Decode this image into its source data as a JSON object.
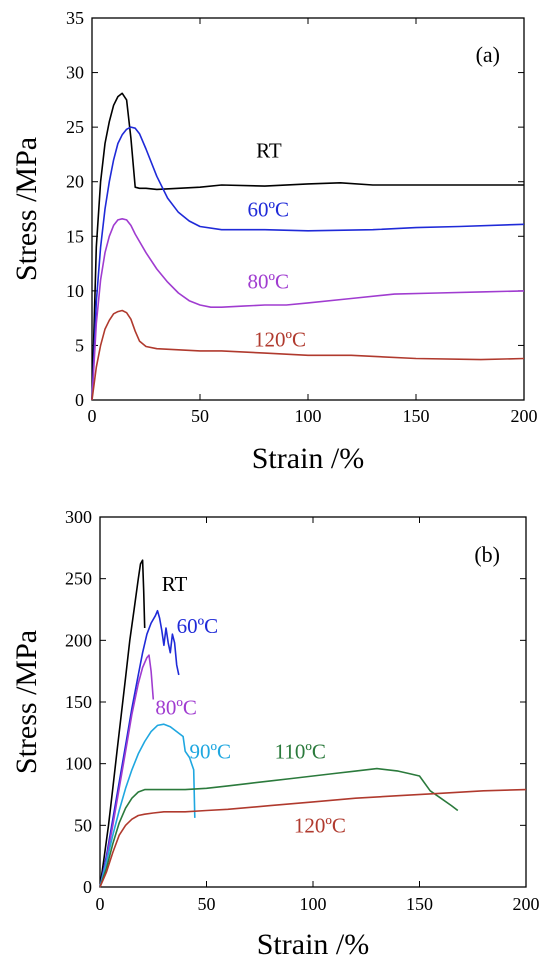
{
  "chart_data": [
    {
      "panel": "(a)",
      "type": "line",
      "xlabel": "Strain /%",
      "ylabel": "Stress /MPa",
      "xlim": [
        0,
        200
      ],
      "ylim": [
        0,
        35
      ],
      "xticks": [
        0,
        50,
        100,
        150,
        200
      ],
      "yticks": [
        0,
        5,
        10,
        15,
        20,
        25,
        30,
        35
      ],
      "grid": false,
      "series": [
        {
          "name": "RT",
          "color": "#000000",
          "x": [
            0,
            2,
            4,
            6,
            8,
            10,
            12,
            14,
            16,
            18,
            20,
            22,
            25,
            30,
            40,
            50,
            60,
            80,
            100,
            115,
            130,
            150,
            170,
            200
          ],
          "y": [
            0,
            14,
            20,
            23.5,
            25.5,
            27,
            27.8,
            28.1,
            27.5,
            24,
            19.5,
            19.4,
            19.4,
            19.3,
            19.4,
            19.5,
            19.7,
            19.6,
            19.8,
            19.9,
            19.7,
            19.7,
            19.7,
            19.7
          ]
        },
        {
          "name": "60ºC",
          "color": "#1f2ad8",
          "x": [
            0,
            2,
            4,
            6,
            8,
            10,
            12,
            14,
            16,
            18,
            20,
            22,
            25,
            30,
            35,
            40,
            45,
            50,
            60,
            80,
            100,
            130,
            150,
            170,
            200
          ],
          "y": [
            0,
            9,
            14,
            17.5,
            20,
            22,
            23.5,
            24.3,
            24.8,
            25,
            24.9,
            24.4,
            23,
            20.5,
            18.5,
            17.2,
            16.4,
            15.9,
            15.6,
            15.6,
            15.5,
            15.6,
            15.8,
            15.9,
            16.1
          ]
        },
        {
          "name": "80ºC",
          "color": "#a03cd0",
          "x": [
            0,
            2,
            4,
            6,
            8,
            10,
            12,
            14,
            16,
            18,
            20,
            25,
            30,
            35,
            40,
            45,
            50,
            55,
            60,
            70,
            80,
            90,
            100,
            120,
            140,
            160,
            180,
            200
          ],
          "y": [
            0,
            7,
            11,
            13.5,
            15,
            16,
            16.5,
            16.6,
            16.5,
            16,
            15.2,
            13.5,
            12,
            10.8,
            9.8,
            9.1,
            8.7,
            8.5,
            8.5,
            8.6,
            8.7,
            8.7,
            8.9,
            9.3,
            9.7,
            9.8,
            9.9,
            10
          ]
        },
        {
          "name": "120ºC",
          "color": "#b03a2e",
          "x": [
            0,
            2,
            4,
            6,
            8,
            10,
            12,
            14,
            16,
            18,
            20,
            22,
            25,
            30,
            40,
            50,
            60,
            80,
            100,
            120,
            150,
            180,
            200
          ],
          "y": [
            0,
            3,
            5,
            6.5,
            7.3,
            7.9,
            8.1,
            8.2,
            8,
            7.4,
            6.3,
            5.4,
            4.9,
            4.7,
            4.6,
            4.5,
            4.5,
            4.3,
            4.1,
            4.1,
            3.8,
            3.7,
            3.8
          ]
        }
      ],
      "annotations": [
        {
          "text": "RT",
          "x": 76,
          "y": 22.2,
          "color": "#000000"
        },
        {
          "text": "60ºC",
          "x": 72,
          "y": 16.8,
          "color": "#1f2ad8"
        },
        {
          "text": "80ºC",
          "x": 72,
          "y": 10.2,
          "color": "#a03cd0"
        },
        {
          "text": "120ºC",
          "x": 75,
          "y": 4.9,
          "color": "#b03a2e"
        }
      ]
    },
    {
      "panel": "(b)",
      "type": "line",
      "xlabel": "Strain /%",
      "ylabel": "Stress /MPa",
      "xlim": [
        0,
        200
      ],
      "ylim": [
        0,
        300
      ],
      "xticks": [
        0,
        50,
        100,
        150,
        200
      ],
      "yticks": [
        0,
        50,
        100,
        150,
        200,
        250,
        300
      ],
      "grid": false,
      "series": [
        {
          "name": "RT",
          "color": "#000000",
          "x": [
            0,
            2,
            4,
            6,
            8,
            10,
            12,
            14,
            16,
            18,
            19,
            20,
            20.5,
            21
          ],
          "y": [
            0,
            25,
            50,
            80,
            110,
            140,
            170,
            200,
            225,
            250,
            262,
            265,
            240,
            210
          ]
        },
        {
          "name": "60ºC",
          "color": "#1f2ad8",
          "x": [
            0,
            3,
            6,
            9,
            12,
            15,
            18,
            20,
            22,
            24,
            26,
            27,
            28,
            29,
            30,
            31,
            32,
            33,
            34,
            35,
            36,
            37
          ],
          "y": [
            0,
            25,
            55,
            85,
            115,
            145,
            172,
            190,
            205,
            214,
            220,
            224,
            218,
            208,
            196,
            210,
            198,
            190,
            205,
            198,
            180,
            172
          ]
        },
        {
          "name": "80ºC",
          "color": "#a03cd0",
          "x": [
            0,
            3,
            6,
            9,
            12,
            15,
            18,
            20,
            22,
            23,
            24,
            25
          ],
          "y": [
            0,
            22,
            50,
            80,
            110,
            140,
            165,
            178,
            186,
            188,
            175,
            152
          ]
        },
        {
          "name": "90ºC",
          "color": "#1fa7e0",
          "x": [
            0,
            3,
            6,
            9,
            12,
            15,
            18,
            21,
            24,
            27,
            30,
            33,
            36,
            39,
            40,
            42,
            43,
            44,
            44.5
          ],
          "y": [
            0,
            20,
            42,
            62,
            80,
            95,
            108,
            118,
            126,
            131,
            132,
            130,
            126,
            122,
            110,
            105,
            100,
            95,
            56
          ]
        },
        {
          "name": "110ºC",
          "color": "#2b7a3c",
          "x": [
            0,
            3,
            6,
            9,
            12,
            15,
            18,
            21,
            25,
            30,
            40,
            50,
            60,
            70,
            80,
            90,
            100,
            110,
            120,
            130,
            140,
            145,
            150,
            155,
            160,
            165,
            168
          ],
          "y": [
            0,
            15,
            35,
            52,
            64,
            72,
            77,
            79,
            79,
            79,
            79,
            80,
            82,
            84,
            86,
            88,
            90,
            92,
            94,
            96,
            94,
            92,
            90,
            78,
            72,
            66,
            62
          ]
        },
        {
          "name": "120ºC",
          "color": "#b03a2e",
          "x": [
            0,
            3,
            6,
            9,
            12,
            15,
            18,
            21,
            25,
            30,
            40,
            50,
            60,
            80,
            100,
            120,
            140,
            160,
            180,
            200
          ],
          "y": [
            0,
            12,
            28,
            42,
            50,
            55,
            58,
            59,
            60,
            61,
            61,
            62,
            63,
            66,
            69,
            72,
            74,
            76,
            78,
            79
          ]
        }
      ],
      "annotations": [
        {
          "text": "RT",
          "x": 29,
          "y": 240,
          "color": "#000000"
        },
        {
          "text": "60ºC",
          "x": 36,
          "y": 206,
          "color": "#1f2ad8"
        },
        {
          "text": "80ºC",
          "x": 26,
          "y": 140,
          "color": "#a03cd0"
        },
        {
          "text": "90ºC",
          "x": 42,
          "y": 104,
          "color": "#1fa7e0"
        },
        {
          "text": "110ºC",
          "x": 82,
          "y": 104,
          "color": "#2b7a3c"
        },
        {
          "text": "120ºC",
          "x": 91,
          "y": 44,
          "color": "#b03a2e"
        }
      ]
    }
  ]
}
